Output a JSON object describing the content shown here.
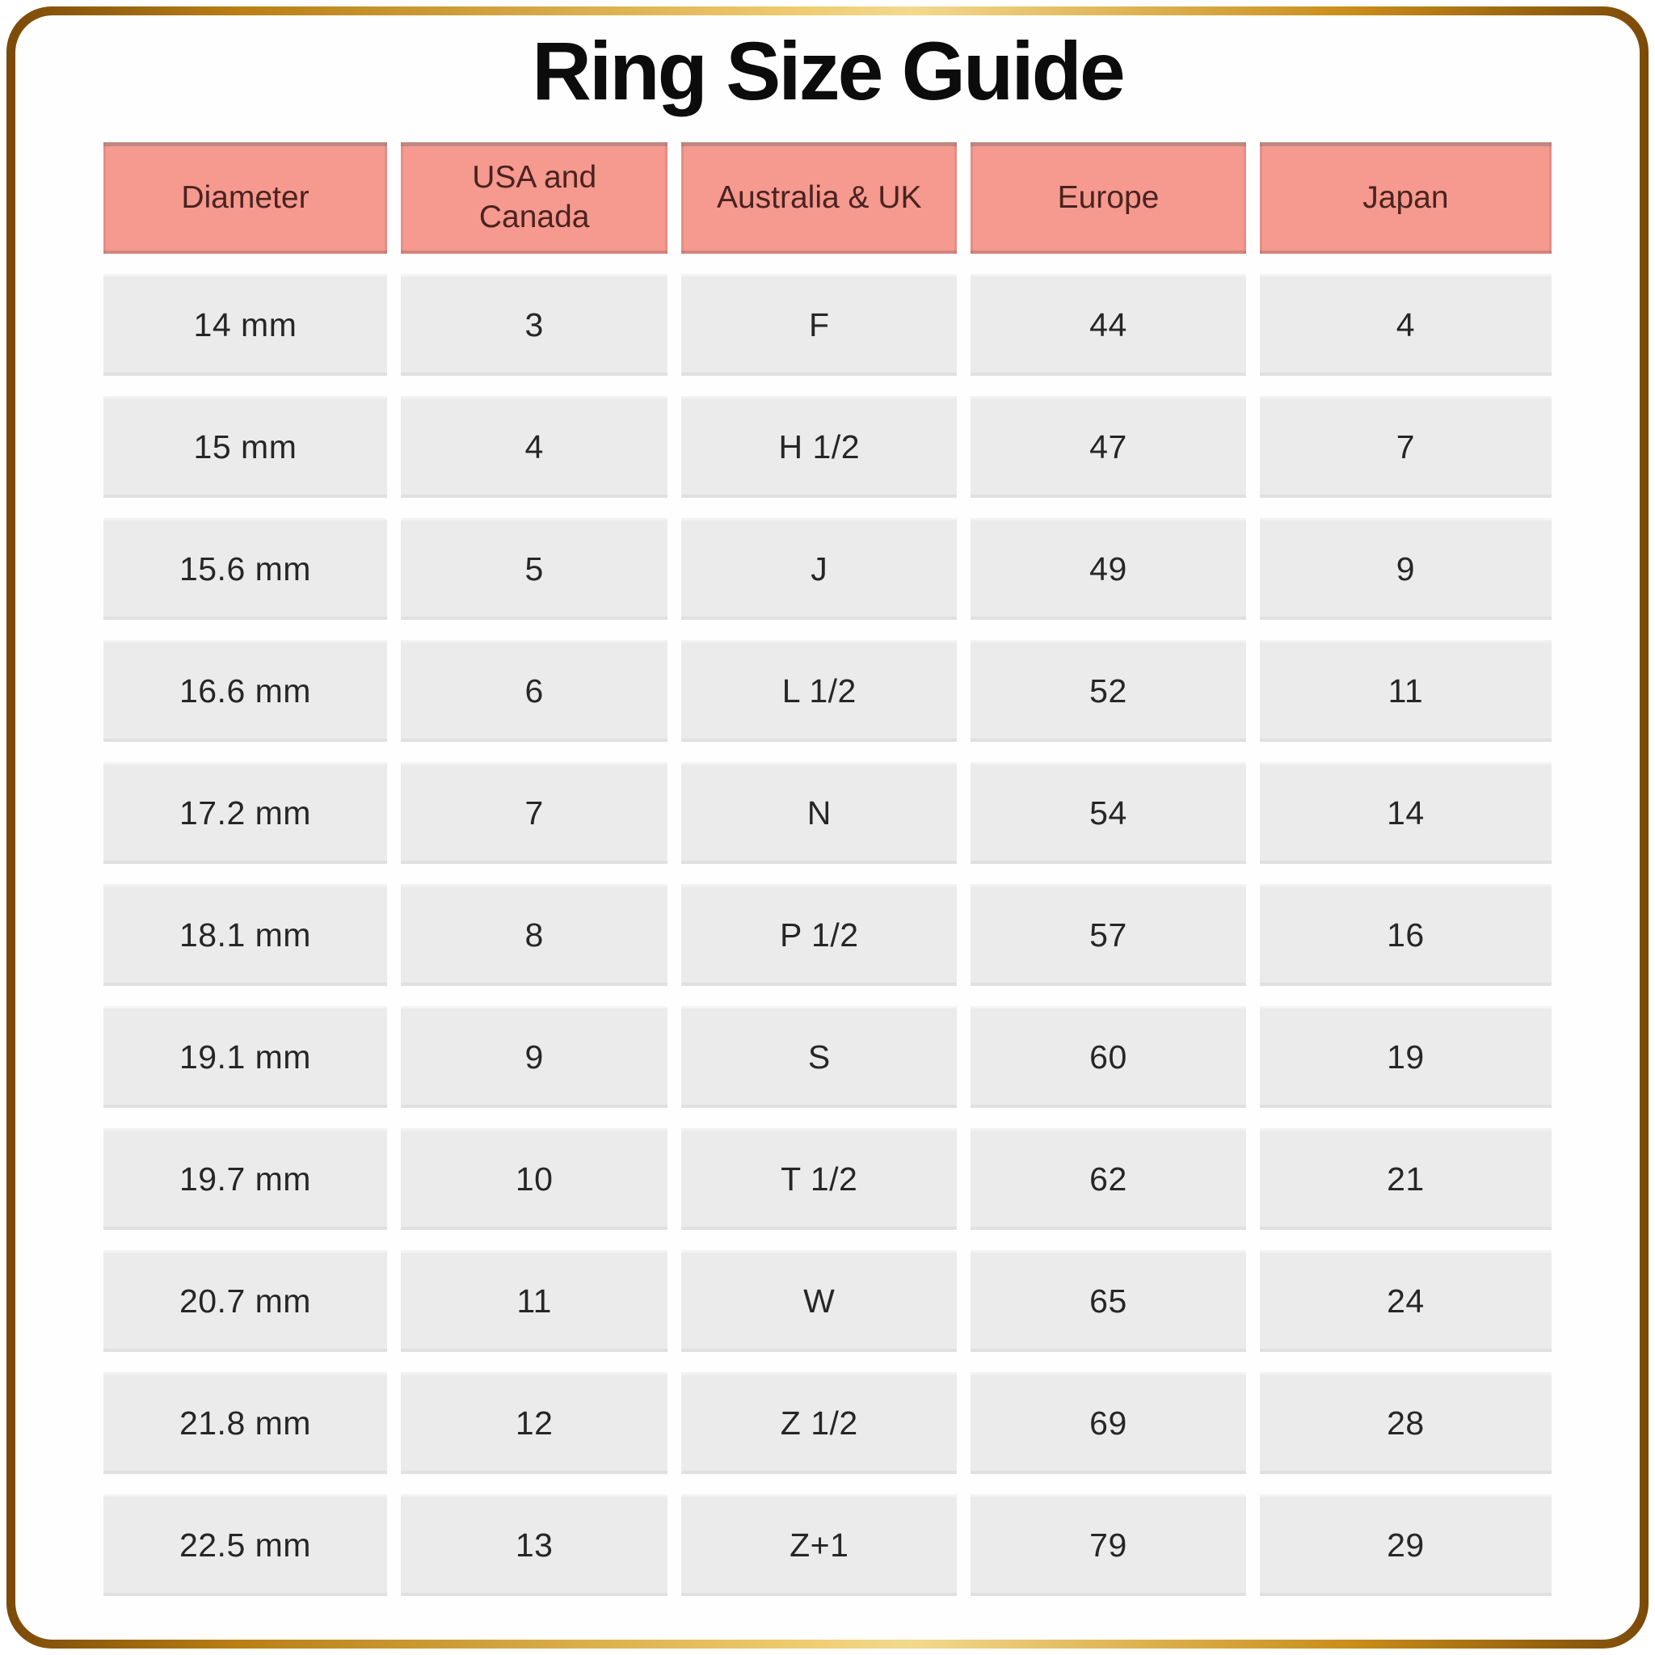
{
  "title": "Ring Size Guide",
  "table": {
    "headers": [
      "Diameter",
      "USA and\nCanada",
      "Australia & UK",
      "Europe",
      "Japan"
    ],
    "rows": [
      [
        "14 mm",
        "3",
        "F",
        "44",
        "4"
      ],
      [
        "15 mm",
        "4",
        "H 1/2",
        "47",
        "7"
      ],
      [
        "15.6 mm",
        "5",
        "J",
        "49",
        "9"
      ],
      [
        "16.6 mm",
        "6",
        "L 1/2",
        "52",
        "11"
      ],
      [
        "17.2 mm",
        "7",
        "N",
        "54",
        "14"
      ],
      [
        "18.1 mm",
        "8",
        "P 1/2",
        "57",
        "16"
      ],
      [
        "19.1 mm",
        "9",
        "S",
        "60",
        "19"
      ],
      [
        "19.7 mm",
        "10",
        "T 1/2",
        "62",
        "21"
      ],
      [
        "20.7 mm",
        "11",
        "W",
        "65",
        "24"
      ],
      [
        "21.8 mm",
        "12",
        "Z 1/2",
        "69",
        "28"
      ],
      [
        "22.5 mm",
        "13",
        "Z+1",
        "79",
        "29"
      ]
    ]
  },
  "colors": {
    "header_bg": "#f6998f",
    "header_text": "#4a2320",
    "cell_bg": "#ebebeb",
    "cell_text": "#262626",
    "title_text": "#0c0c0c",
    "frame_gold_dark": "#7b4a08",
    "frame_gold_mid": "#c98d1a",
    "frame_gold_light": "#f3d98d",
    "page_bg": "#ffffff"
  }
}
